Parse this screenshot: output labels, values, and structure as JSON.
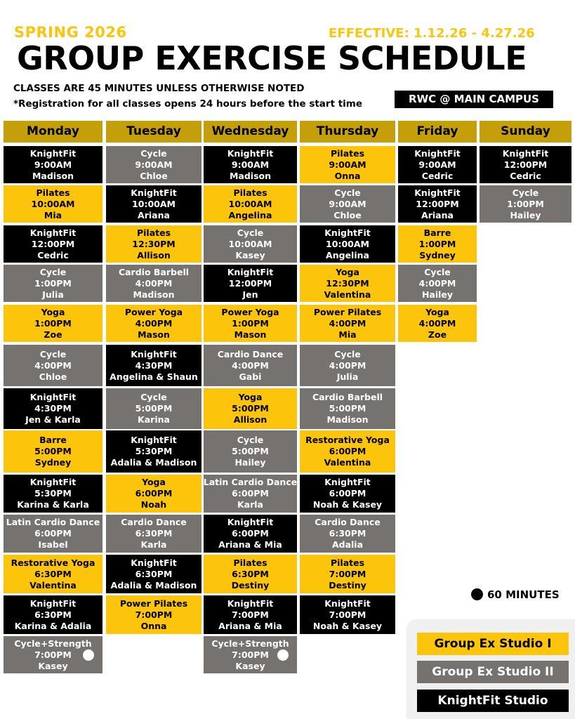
{
  "header": {
    "season": "SPRING 2026",
    "effective": "EFFECTIVE: 1.12.26 - 4.27.26",
    "title": "GROUP EXERCISE SCHEDULE",
    "note1": "CLASSES ARE 45 MINUTES UNLESS OTHERWISE NOTED",
    "note2": "*Registration for all classes opens 24 hours before the start time",
    "campus": "RWC @ MAIN CAMPUS"
  },
  "days": [
    "Monday",
    "Tuesday",
    "Wednesday",
    "Thursday",
    "Friday",
    "Sunday"
  ],
  "schedule": {
    "monday": [
      {
        "name": "KnightFit",
        "time": "9:00AM",
        "instructor": "Madison",
        "studio": "kf"
      },
      {
        "name": "Pilates",
        "time": "10:00AM",
        "instructor": "Mia",
        "studio": "s1"
      },
      {
        "name": "KnightFit",
        "time": "12:00PM",
        "instructor": "Cedric",
        "studio": "kf"
      },
      {
        "name": "Cycle",
        "time": "1:00PM",
        "instructor": "Julia",
        "studio": "s2"
      },
      {
        "name": "Yoga",
        "time": "1:00PM",
        "instructor": "Zoe",
        "studio": "s1"
      },
      {
        "name": "Cycle",
        "time": "4:00PM",
        "instructor": "Chloe",
        "studio": "s2"
      },
      {
        "name": "KnightFit",
        "time": "4:30PM",
        "instructor": "Jen & Karla",
        "studio": "kf"
      },
      {
        "name": "Barre",
        "time": "5:00PM",
        "instructor": "Sydney",
        "studio": "s1"
      },
      {
        "name": "KnightFit",
        "time": "5:30PM",
        "instructor": "Karina & Karla",
        "studio": "kf"
      },
      {
        "name": "Latin Cardio Dance",
        "time": "6:00PM",
        "instructor": "Isabel",
        "studio": "s2"
      },
      {
        "name": "Restorative Yoga",
        "time": "6:30PM",
        "instructor": "Valentina",
        "studio": "s1"
      },
      {
        "name": "KnightFit",
        "time": "6:30PM",
        "instructor": "Karina & Adalia",
        "studio": "kf"
      },
      {
        "name": "Cycle+Strength",
        "time": "7:00PM",
        "instructor": "Kasey",
        "studio": "s2",
        "sixty": true
      }
    ],
    "tuesday": [
      {
        "name": "Cycle",
        "time": "9:00AM",
        "instructor": "Chloe",
        "studio": "s2"
      },
      {
        "name": "KnightFit",
        "time": "10:00AM",
        "instructor": "Ariana",
        "studio": "kf"
      },
      {
        "name": "Pilates",
        "time": "12:30PM",
        "instructor": "Allison",
        "studio": "s1"
      },
      {
        "name": "Cardio Barbell",
        "time": "4:00PM",
        "instructor": "Madison",
        "studio": "s2"
      },
      {
        "name": "Power Yoga",
        "time": "4:00PM",
        "instructor": "Mason",
        "studio": "s1"
      },
      {
        "name": "KnightFit",
        "time": "4:30PM",
        "instructor": "Angelina & Shaun",
        "studio": "kf"
      },
      {
        "name": "Cycle",
        "time": "5:00PM",
        "instructor": "Karina",
        "studio": "s2"
      },
      {
        "name": "KnightFit",
        "time": "5:30PM",
        "instructor": "Adalia & Madison",
        "studio": "kf"
      },
      {
        "name": "Yoga",
        "time": "6:00PM",
        "instructor": "Noah",
        "studio": "s1"
      },
      {
        "name": "Cardio Dance",
        "time": "6:30PM",
        "instructor": "Karla",
        "studio": "s2"
      },
      {
        "name": "KnightFit",
        "time": "6:30PM",
        "instructor": "Adalia & Madison",
        "studio": "kf"
      },
      {
        "name": "Power Pilates",
        "time": "7:00PM",
        "instructor": "Onna",
        "studio": "s1"
      }
    ],
    "wednesday": [
      {
        "name": "KnightFit",
        "time": "9:00AM",
        "instructor": "Madison",
        "studio": "kf"
      },
      {
        "name": "Pilates",
        "time": "10:00AM",
        "instructor": "Angelina",
        "studio": "s1"
      },
      {
        "name": "Cycle",
        "time": "10:00AM",
        "instructor": "Kasey",
        "studio": "s2"
      },
      {
        "name": "KnightFit",
        "time": "12:00PM",
        "instructor": "Jen",
        "studio": "kf"
      },
      {
        "name": "Power Yoga",
        "time": "1:00PM",
        "instructor": "Mason",
        "studio": "s1"
      },
      {
        "name": "Cardio Dance",
        "time": "4:00PM",
        "instructor": "Gabi",
        "studio": "s2"
      },
      {
        "name": "Yoga",
        "time": "5:00PM",
        "instructor": "Allison",
        "studio": "s1"
      },
      {
        "name": "Cycle",
        "time": "5:00PM",
        "instructor": "Hailey",
        "studio": "s2"
      },
      {
        "name": "Latin Cardio Dance",
        "time": "6:00PM",
        "instructor": "Karla",
        "studio": "s2"
      },
      {
        "name": "KnightFit",
        "time": "6:00PM",
        "instructor": "Ariana & Mia",
        "studio": "kf"
      },
      {
        "name": "Pilates",
        "time": "6:30PM",
        "instructor": "Destiny",
        "studio": "s1"
      },
      {
        "name": "KnightFit",
        "time": "7:00PM",
        "instructor": "Ariana & Mia",
        "studio": "kf"
      },
      {
        "name": "Cycle+Strength",
        "time": "7:00PM",
        "instructor": "Kasey",
        "studio": "s2",
        "sixty": true
      }
    ],
    "thursday": [
      {
        "name": "Pilates",
        "time": "9:00AM",
        "instructor": "Onna",
        "studio": "s1"
      },
      {
        "name": "Cycle",
        "time": "9:00AM",
        "instructor": "Chloe",
        "studio": "s2"
      },
      {
        "name": "KnightFit",
        "time": "10:00AM",
        "instructor": "Angelina",
        "studio": "kf"
      },
      {
        "name": "Yoga",
        "time": "12:30PM",
        "instructor": "Valentina",
        "studio": "s1"
      },
      {
        "name": "Power Pilates",
        "time": "4:00PM",
        "instructor": "Mia",
        "studio": "s1"
      },
      {
        "name": "Cycle",
        "time": "4:00PM",
        "instructor": "Julia",
        "studio": "s2"
      },
      {
        "name": "Cardio Barbell",
        "time": "5:00PM",
        "instructor": "Madison",
        "studio": "s2"
      },
      {
        "name": "Restorative Yoga",
        "time": "6:00PM",
        "instructor": "Valentina",
        "studio": "s1"
      },
      {
        "name": "KnightFit",
        "time": "6:00PM",
        "instructor": "Noah & Kasey",
        "studio": "kf"
      },
      {
        "name": "Cardio Dance",
        "time": "6:30PM",
        "instructor": "Adalia",
        "studio": "s2"
      },
      {
        "name": "Pilates",
        "time": "7:00PM",
        "instructor": "Destiny",
        "studio": "s1"
      },
      {
        "name": "KnightFit",
        "time": "7:00PM",
        "instructor": "Noah & Kasey",
        "studio": "kf"
      }
    ],
    "friday": [
      {
        "name": "KnightFit",
        "time": "9:00AM",
        "instructor": "Cedric",
        "studio": "kf"
      },
      {
        "name": "KnightFit",
        "time": "12:00PM",
        "instructor": "Ariana",
        "studio": "kf"
      },
      {
        "name": "Barre",
        "time": "1:00PM",
        "instructor": "Sydney",
        "studio": "s1"
      },
      {
        "name": "Cycle",
        "time": "4:00PM",
        "instructor": "Hailey",
        "studio": "s2"
      },
      {
        "name": "Yoga",
        "time": "4:00PM",
        "instructor": "Zoe",
        "studio": "s1"
      }
    ],
    "sunday": [
      {
        "name": "KnightFit",
        "time": "12:00PM",
        "instructor": "Cedric",
        "studio": "kf"
      },
      {
        "name": "Cycle",
        "time": "1:00PM",
        "instructor": "Hailey",
        "studio": "s2"
      }
    ]
  },
  "legend": {
    "sixty_label": "60 MINUTES",
    "studios": [
      {
        "label": "Group Ex Studio I",
        "color": "#fcc40a"
      },
      {
        "label": "Group Ex Studio II",
        "color": "#767270"
      },
      {
        "label": "KnightFit Studio",
        "color": "#000000"
      }
    ]
  }
}
